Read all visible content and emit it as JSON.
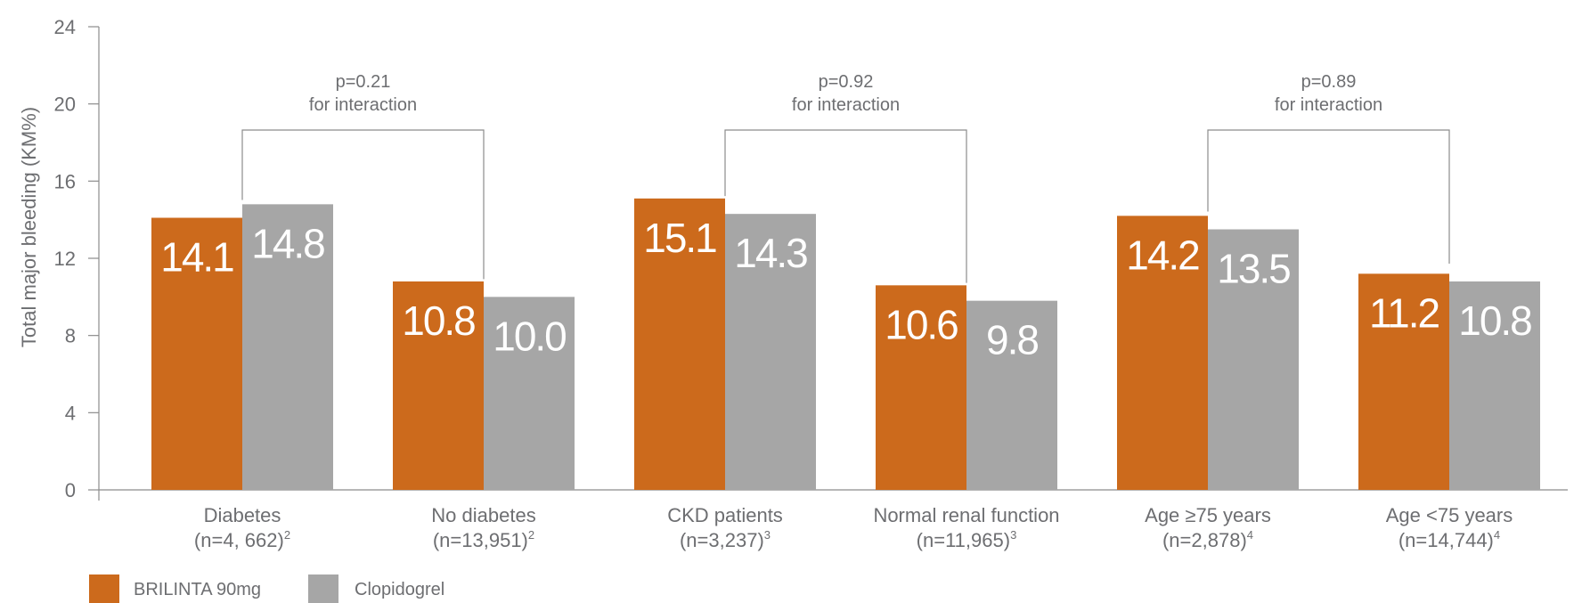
{
  "colors": {
    "brilinta": "#cc6a1c",
    "clopidogrel": "#a6a6a6",
    "axis": "#8c8c8c",
    "text": "#6d6e71"
  },
  "chart_data": {
    "type": "bar",
    "ylabel": "Total major bleeding (KM%)",
    "ylim": [
      0,
      24
    ],
    "yticks": [
      0,
      4,
      8,
      12,
      16,
      20,
      24
    ],
    "grid": false,
    "categories": [
      {
        "name": "Diabetes",
        "n": "(n=4, 662)",
        "ref": "2"
      },
      {
        "name": "No diabetes",
        "n": "(n=13,951)",
        "ref": "2"
      },
      {
        "name": "CKD patients",
        "n": "(n=3,237)",
        "ref": "3"
      },
      {
        "name": "Normal renal function",
        "n": "(n=11,965)",
        "ref": "3"
      },
      {
        "name": "Age ≥75 years",
        "n": "(n=2,878)",
        "ref": "4"
      },
      {
        "name": "Age <75 years",
        "n": "(n=14,744)",
        "ref": "4"
      }
    ],
    "series": [
      {
        "name": "BRILINTA 90mg",
        "values": [
          14.1,
          10.8,
          15.1,
          10.6,
          14.2,
          11.2
        ],
        "labels": [
          "14.1",
          "10.8",
          "15.1",
          "10.6",
          "14.2",
          "11.2"
        ]
      },
      {
        "name": "Clopidogrel",
        "values": [
          14.8,
          10.0,
          14.3,
          9.8,
          13.5,
          10.8
        ],
        "labels": [
          "14.8",
          "10.0",
          "14.3",
          "9.8",
          "13.5",
          "10.8"
        ]
      }
    ],
    "annotations": [
      {
        "line1": "p=0.21",
        "line2": "for interaction",
        "from": 0,
        "to": 1
      },
      {
        "line1": "p=0.92",
        "line2": "for interaction",
        "from": 2,
        "to": 3
      },
      {
        "line1": "p=0.89",
        "line2": "for interaction",
        "from": 4,
        "to": 5
      }
    ],
    "legend_position": "bottom-left"
  }
}
